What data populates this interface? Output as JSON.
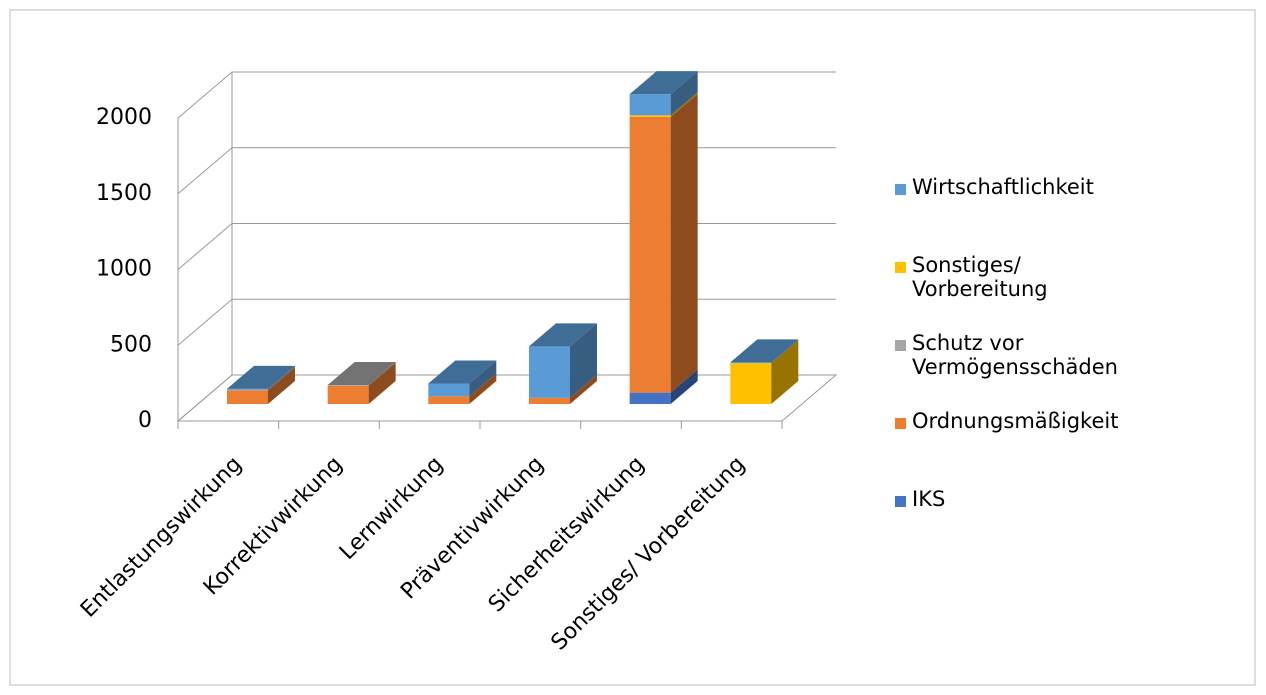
{
  "chart_data": {
    "type": "bar3d_stacked",
    "categories": [
      "Entlastungswirkung",
      "Korrektivwirkung",
      "Lernwirkung",
      "Präventivwirkung",
      "Sicherheitswirkung",
      "Sonstiges/ Vorbereitung"
    ],
    "series": [
      {
        "name": "IKS",
        "color": "#4472c4",
        "values": [
          0,
          0,
          0,
          0,
          75,
          0
        ]
      },
      {
        "name": "Ordnungsmäßigkeit",
        "color": "#ed7d31",
        "values": [
          90,
          120,
          50,
          40,
          1820,
          0
        ]
      },
      {
        "name": "Schutz vor Vermögensschäden",
        "color": "#a5a5a5",
        "values": [
          5,
          5,
          0,
          0,
          0,
          0
        ]
      },
      {
        "name": "Sonstiges/ Vorbereitung",
        "color": "#ffc000",
        "values": [
          0,
          0,
          0,
          0,
          10,
          270
        ]
      },
      {
        "name": "Wirtschaftlichkeit",
        "color": "#5b9bd5",
        "values": [
          5,
          0,
          85,
          340,
          140,
          5
        ]
      }
    ],
    "ylim": [
      0,
      2000
    ],
    "yticks": [
      0,
      500,
      1000,
      1500,
      2000
    ],
    "grid": true,
    "legend": "right"
  }
}
